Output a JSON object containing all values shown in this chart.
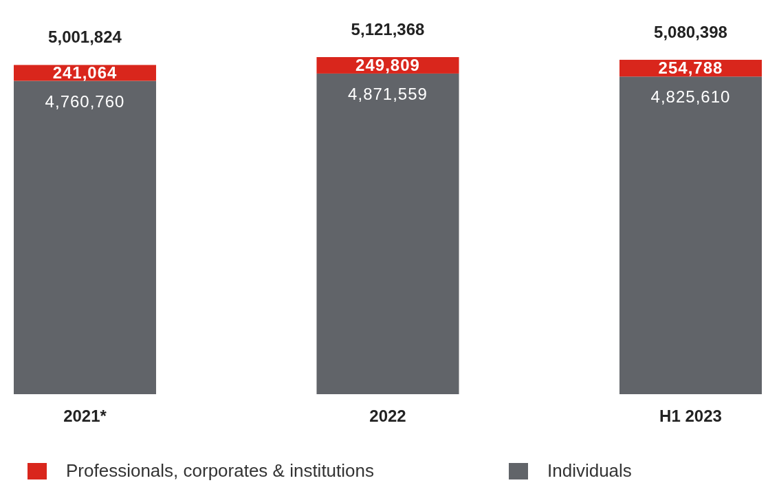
{
  "chart_data": {
    "type": "bar",
    "stacked": true,
    "categories": [
      "2021*",
      "2022",
      "H1 2023"
    ],
    "series": [
      {
        "name": "Individuals",
        "color": "#616469",
        "values": [
          4760760,
          4871559,
          4825610
        ],
        "value_labels": [
          "4,760,760",
          "4,871,559",
          "4,825,610"
        ]
      },
      {
        "name": "Professionals, corporates & institutions",
        "color": "#d9261c",
        "values": [
          241064,
          249809,
          254788
        ],
        "value_labels": [
          "241,064",
          "249,809",
          "254,788"
        ]
      }
    ],
    "totals": [
      "5,001,824",
      "5,121,368",
      "5,080,398"
    ],
    "legend": "bottom"
  }
}
